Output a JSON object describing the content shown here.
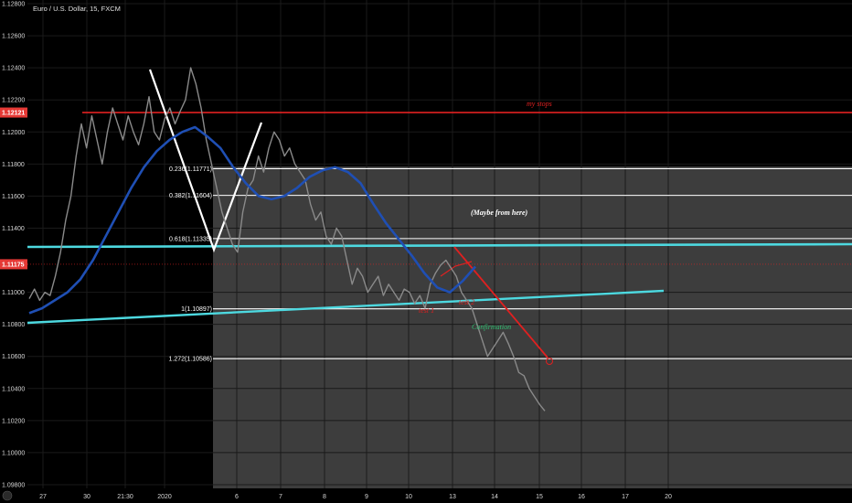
{
  "chart_data": {
    "type": "line",
    "title": "Euro / U.S. Dollar, 15, FXCM",
    "ylim": [
      1.098,
      1.128
    ],
    "y_ticks": [
      "1.12800",
      "1.12600",
      "1.12400",
      "1.12200",
      "1.12000",
      "1.11800",
      "1.11600",
      "1.11400",
      "1.11000",
      "1.10800",
      "1.10600",
      "1.10400",
      "1.10200",
      "1.10000",
      "1.09800"
    ],
    "x_ticks": [
      "27",
      "30",
      "21:30",
      "2020",
      "6",
      "7",
      "8",
      "9",
      "10",
      "13",
      "14",
      "15",
      "16",
      "17",
      "20"
    ],
    "price_badges": [
      {
        "label": "1.12121",
        "value": 1.12121,
        "color": "#e53935"
      },
      {
        "label": "1.11175",
        "value": 1.11175,
        "color": "#e53935"
      }
    ],
    "fib_levels": [
      {
        "label": "0.236(1.11771)",
        "value": 1.11771
      },
      {
        "label": "0.382(1.11604)",
        "value": 1.11604
      },
      {
        "label": "0.618(1.11335)",
        "value": 1.11335
      },
      {
        "label": "1(1.10897)",
        "value": 1.10897
      },
      {
        "label": "1.272(1.10586)",
        "value": 1.10586
      }
    ],
    "annotations": {
      "stops": "my stops",
      "maybe": "(Maybe from here)",
      "test1": "test 1",
      "test2": "test 2",
      "confirmation": "Confirmation"
    },
    "price_series": [
      1.1096,
      1.1102,
      1.1095,
      1.11,
      1.1098,
      1.111,
      1.1125,
      1.1145,
      1.116,
      1.1185,
      1.1205,
      1.119,
      1.121,
      1.1195,
      1.118,
      1.12,
      1.1215,
      1.1205,
      1.1195,
      1.121,
      1.12,
      1.1192,
      1.1205,
      1.1222,
      1.12,
      1.1195,
      1.1208,
      1.1215,
      1.1205,
      1.1213,
      1.122,
      1.124,
      1.123,
      1.1215,
      1.1195,
      1.118,
      1.1165,
      1.115,
      1.114,
      1.113,
      1.1125,
      1.115,
      1.1165,
      1.117,
      1.1185,
      1.1175,
      1.119,
      1.12,
      1.1195,
      1.1185,
      1.119,
      1.118,
      1.1175,
      1.117,
      1.1155,
      1.1145,
      1.115,
      1.1135,
      1.113,
      1.114,
      1.1135,
      1.112,
      1.1105,
      1.1115,
      1.111,
      1.11,
      1.1105,
      1.111,
      1.1098,
      1.1105,
      1.11,
      1.1095,
      1.1102,
      1.11,
      1.1093,
      1.1098,
      1.109,
      1.1105,
      1.1112,
      1.1117,
      1.112,
      1.1115,
      1.111,
      1.11,
      1.1095,
      1.109,
      1.108,
      1.107,
      1.106,
      1.1065,
      1.107,
      1.1075,
      1.1068,
      1.106,
      1.105,
      1.1048,
      1.104,
      1.1035,
      1.103,
      1.1026
    ],
    "ma_series": [
      1.1087,
      1.109,
      1.1095,
      1.11,
      1.1108,
      1.112,
      1.1135,
      1.115,
      1.1165,
      1.1178,
      1.1188,
      1.1195,
      1.12,
      1.1203,
      1.1197,
      1.119,
      1.1178,
      1.1168,
      1.116,
      1.1158,
      1.116,
      1.1165,
      1.1172,
      1.1176,
      1.1178,
      1.1175,
      1.1168,
      1.1155,
      1.1143,
      1.1133,
      1.1123,
      1.1112,
      1.1103,
      1.11,
      1.1107,
      1.1116
    ]
  }
}
